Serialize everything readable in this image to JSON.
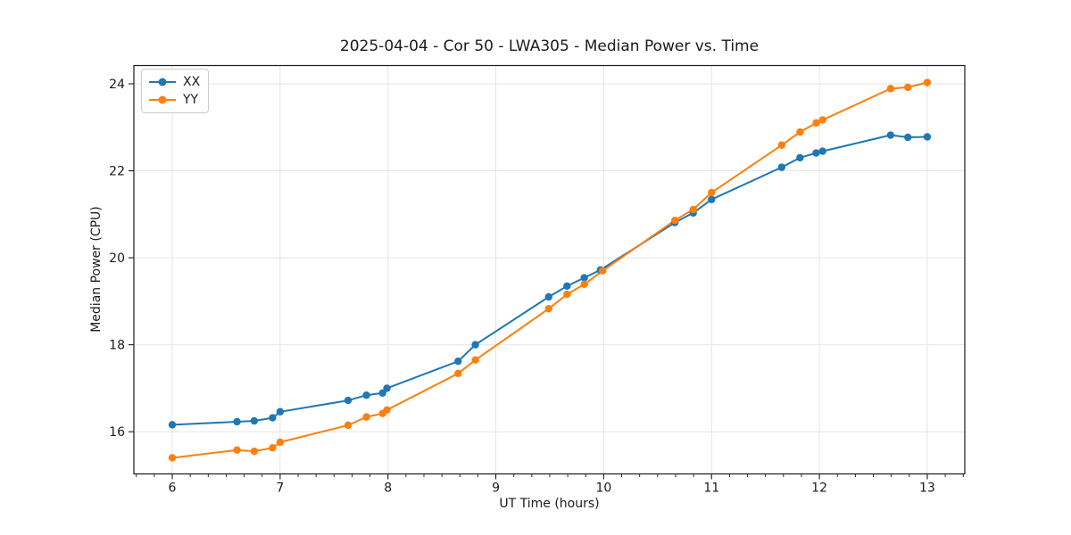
{
  "chart_data": {
    "type": "line",
    "title": "2025-04-04 - Cor 50 - LWA305 - Median Power vs. Time",
    "xlabel": "UT Time (hours)",
    "ylabel": "Median Power (CPU)",
    "xlim": [
      5.644,
      13.348
    ],
    "ylim": [
      15.03,
      24.42
    ],
    "xticks": [
      6,
      7,
      8,
      9,
      10,
      11,
      12,
      13
    ],
    "yticks": [
      16,
      18,
      20,
      22,
      24
    ],
    "x_minor_tick_step_hours": 0.166667,
    "grid": true,
    "grid_color": "#e5e5e5",
    "axis_color": "#1a1a1a",
    "legend_position": "upper-left",
    "series": [
      {
        "name": "XX",
        "color": "#1f77b4",
        "marker": "circle",
        "points": [
          [
            6.0,
            16.16
          ],
          [
            6.6,
            16.23
          ],
          [
            6.76,
            16.25
          ],
          [
            6.93,
            16.32
          ],
          [
            7.0,
            16.46
          ],
          [
            7.63,
            16.72
          ],
          [
            7.8,
            16.84
          ],
          [
            7.95,
            16.89
          ],
          [
            7.99,
            17.0
          ],
          [
            8.65,
            17.62
          ],
          [
            8.81,
            18.0
          ],
          [
            9.49,
            19.1
          ],
          [
            9.66,
            19.35
          ],
          [
            9.82,
            19.54
          ],
          [
            9.97,
            19.72
          ],
          [
            10.66,
            20.81
          ],
          [
            10.83,
            21.03
          ],
          [
            11.0,
            21.34
          ],
          [
            11.65,
            22.08
          ],
          [
            11.82,
            22.3
          ],
          [
            11.97,
            22.41
          ],
          [
            12.03,
            22.45
          ],
          [
            12.66,
            22.82
          ],
          [
            12.82,
            22.77
          ],
          [
            13.0,
            22.78
          ]
        ]
      },
      {
        "name": "YY",
        "color": "#ff7f0e",
        "marker": "circle",
        "points": [
          [
            6.0,
            15.4
          ],
          [
            6.6,
            15.58
          ],
          [
            6.76,
            15.55
          ],
          [
            6.93,
            15.63
          ],
          [
            7.0,
            15.76
          ],
          [
            7.63,
            16.15
          ],
          [
            7.8,
            16.34
          ],
          [
            7.95,
            16.42
          ],
          [
            7.99,
            16.5
          ],
          [
            8.65,
            17.34
          ],
          [
            8.81,
            17.65
          ],
          [
            9.49,
            18.83
          ],
          [
            9.66,
            19.16
          ],
          [
            9.82,
            19.39
          ],
          [
            9.99,
            19.7
          ],
          [
            10.66,
            20.86
          ],
          [
            10.83,
            21.11
          ],
          [
            11.0,
            21.5
          ],
          [
            11.65,
            22.59
          ],
          [
            11.82,
            22.89
          ],
          [
            11.97,
            23.1
          ],
          [
            12.03,
            23.17
          ],
          [
            12.66,
            23.89
          ],
          [
            12.82,
            23.92
          ],
          [
            13.0,
            24.03
          ]
        ]
      }
    ]
  }
}
